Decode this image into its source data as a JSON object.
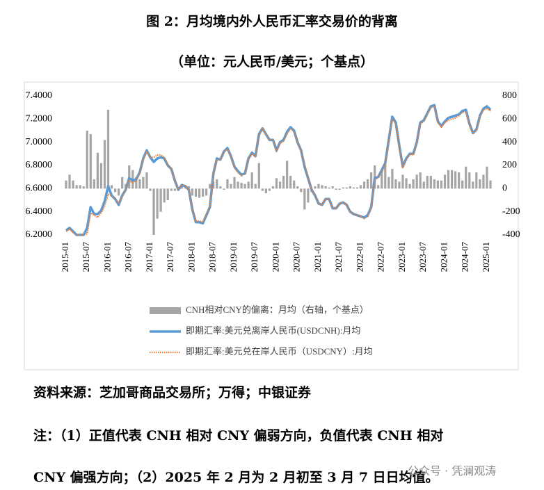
{
  "title": "图 2：月均境内外人民币汇率交易价的背离",
  "subtitle": "（单位：元人民币/美元；个基点）",
  "chart_data": {
    "type": "bar-line",
    "categories": [
      "2015-01",
      null,
      null,
      null,
      null,
      null,
      "2015-07",
      null,
      null,
      null,
      null,
      null,
      "2016-01",
      null,
      null,
      null,
      null,
      null,
      "2016-07",
      null,
      null,
      null,
      null,
      null,
      "2017-01",
      null,
      null,
      null,
      null,
      null,
      "2017-07",
      null,
      null,
      null,
      null,
      null,
      "2018-01",
      null,
      null,
      null,
      null,
      null,
      "2018-07",
      null,
      null,
      null,
      null,
      null,
      "2019-01",
      null,
      null,
      null,
      null,
      null,
      "2019-07",
      null,
      null,
      null,
      null,
      null,
      "2020-01",
      null,
      null,
      null,
      null,
      null,
      "2020-07",
      null,
      null,
      null,
      null,
      null,
      "2021-01",
      null,
      null,
      null,
      null,
      null,
      "2021-07",
      null,
      null,
      null,
      null,
      null,
      "2022-01",
      null,
      null,
      null,
      null,
      null,
      "2022-07",
      null,
      null,
      null,
      null,
      null,
      "2023-01",
      null,
      null,
      null,
      null,
      null,
      "2023-07",
      null,
      null,
      null,
      null,
      null,
      "2024-01",
      null,
      null,
      null,
      null,
      null,
      "2024-07",
      null,
      null,
      null,
      null,
      null,
      "2025-01",
      null
    ],
    "series": [
      {
        "name": "CNH相对CNY的偏离：月均（右轴，个基点）",
        "color": "#a5a5a5",
        "axis": "y2",
        "kind": "bar",
        "values": [
          70,
          120,
          70,
          30,
          30,
          20,
          500,
          470,
          80,
          310,
          220,
          420,
          680,
          30,
          -30,
          -60,
          100,
          40,
          200,
          160,
          100,
          80,
          100,
          140,
          -20,
          -400,
          -260,
          -200,
          -120,
          -100,
          -20,
          -20,
          10,
          40,
          30,
          20,
          -60,
          -70,
          -80,
          -70,
          -60,
          40,
          60,
          80,
          20,
          -10,
          80,
          40,
          100,
          60,
          50,
          40,
          60,
          140,
          40,
          220,
          -20,
          -40,
          -20,
          20,
          90,
          60,
          110,
          240,
          110,
          70,
          20,
          -30,
          -180,
          -120,
          -30,
          20,
          40,
          30,
          20,
          10,
          20,
          -10,
          -10,
          10,
          10,
          20,
          10,
          10,
          30,
          60,
          80,
          140,
          200,
          30,
          160,
          210,
          100,
          170,
          80,
          60,
          120,
          90,
          40,
          80,
          120,
          140,
          60,
          110,
          110,
          80,
          70,
          70,
          120,
          160,
          160,
          150,
          140,
          70,
          190,
          140,
          60,
          140,
          80,
          120,
          190,
          70
        ]
      },
      {
        "name": "即期汇率:美元兑离岸人民币(USDCNH):月均",
        "color": "#5b9bd5",
        "kind": "line",
        "values": [
          6.24,
          6.26,
          6.23,
          6.2,
          6.2,
          6.2,
          6.26,
          6.44,
          6.38,
          6.38,
          6.41,
          6.49,
          6.62,
          6.54,
          6.51,
          6.46,
          6.54,
          6.59,
          6.69,
          6.67,
          6.68,
          6.74,
          6.86,
          6.93,
          6.87,
          6.83,
          6.86,
          6.87,
          6.86,
          6.8,
          6.77,
          6.67,
          6.59,
          6.63,
          6.62,
          6.59,
          6.42,
          6.31,
          6.31,
          6.3,
          6.37,
          6.44,
          6.73,
          6.86,
          6.85,
          6.92,
          6.95,
          6.88,
          6.79,
          6.75,
          6.72,
          6.73,
          6.86,
          6.91,
          6.88,
          7.07,
          7.12,
          7.07,
          7.02,
          7.02,
          6.93,
          7.0,
          7.02,
          7.09,
          7.13,
          7.1,
          7.0,
          6.93,
          6.79,
          6.69,
          6.59,
          6.54,
          6.47,
          6.46,
          6.51,
          6.51,
          6.43,
          6.43,
          6.47,
          6.48,
          6.46,
          6.4,
          6.38,
          6.37,
          6.36,
          6.35,
          6.37,
          6.44,
          6.69,
          6.7,
          6.76,
          6.82,
          7.02,
          7.22,
          7.17,
          6.97,
          6.79,
          6.86,
          6.9,
          6.9,
          7.0,
          7.17,
          7.19,
          7.25,
          7.31,
          7.32,
          7.18,
          7.14,
          7.18,
          7.21,
          7.22,
          7.23,
          7.24,
          7.27,
          7.28,
          7.16,
          7.08,
          7.11,
          7.23,
          7.29,
          7.31,
          7.28
        ]
      },
      {
        "name": "即期汇率:美元兑在岸人民币（USDCNY）:月均",
        "color": "#ed7d31",
        "kind": "dotted",
        "values": [
          6.23,
          6.25,
          6.22,
          6.2,
          6.2,
          6.2,
          6.21,
          6.39,
          6.37,
          6.35,
          6.39,
          6.45,
          6.55,
          6.54,
          6.51,
          6.47,
          6.53,
          6.59,
          6.67,
          6.65,
          6.67,
          6.73,
          6.85,
          6.92,
          6.87,
          6.87,
          6.89,
          6.89,
          6.87,
          6.81,
          6.77,
          6.67,
          6.59,
          6.63,
          6.62,
          6.59,
          6.43,
          6.32,
          6.32,
          6.31,
          6.38,
          6.44,
          6.72,
          6.85,
          6.85,
          6.92,
          6.94,
          6.88,
          6.78,
          6.74,
          6.71,
          6.73,
          6.85,
          6.9,
          6.88,
          7.05,
          7.12,
          7.07,
          7.02,
          7.02,
          6.92,
          6.99,
          7.01,
          7.07,
          7.12,
          7.09,
          7.0,
          6.93,
          6.81,
          6.7,
          6.59,
          6.54,
          6.47,
          6.46,
          6.51,
          6.51,
          6.43,
          6.43,
          6.47,
          6.48,
          6.46,
          6.4,
          6.38,
          6.37,
          6.36,
          6.34,
          6.36,
          6.43,
          6.67,
          6.7,
          6.74,
          6.8,
          7.01,
          7.2,
          7.16,
          6.96,
          6.78,
          6.85,
          6.9,
          6.89,
          6.99,
          7.16,
          7.18,
          7.24,
          7.3,
          7.31,
          7.17,
          7.13,
          7.17,
          7.19,
          7.2,
          7.21,
          7.23,
          7.26,
          7.26,
          7.15,
          7.07,
          7.1,
          7.22,
          7.28,
          7.29,
          7.27
        ]
      }
    ],
    "ylim": [
      6.2,
      7.4
    ],
    "yticks": [
      {
        "value": 6.2,
        "label": "6.2000"
      },
      {
        "value": 6.4,
        "label": "6.4000"
      },
      {
        "value": 6.6,
        "label": "6.6000"
      },
      {
        "value": 6.8,
        "label": "6.8000"
      },
      {
        "value": 7.0,
        "label": "7.0000"
      },
      {
        "value": 7.2,
        "label": "7.2000"
      },
      {
        "value": 7.4,
        "label": "7.4000"
      }
    ],
    "y2lim": [
      -400,
      800
    ],
    "y2ticks": [
      -400,
      -200,
      0,
      200,
      400,
      600,
      800
    ],
    "legend": "bottom"
  },
  "source": "资料来源：芝加哥商品交易所；万得；中银证券",
  "notes": [
    "注：（1）正值代表 CNH 相对 CNY 偏弱方向，负值代表 CNH 相对",
    "CNY 偏强方向；（2）2025 年 2 月为 2 月初至 3 月 7 日日均值。"
  ],
  "watermark": "公众号 · 凭澜观涛"
}
